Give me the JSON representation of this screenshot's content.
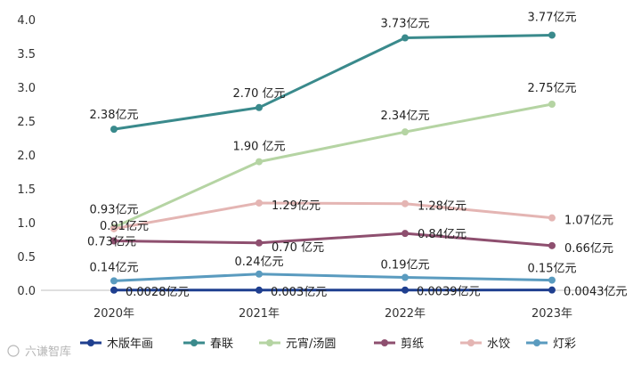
{
  "chart_data": {
    "type": "line",
    "x": [
      "2020年",
      "2021年",
      "2022年",
      "2023年"
    ],
    "ylim": [
      0,
      4.0
    ],
    "yticks": [
      "0.0",
      "0.5",
      "1.0",
      "1.5",
      "2.0",
      "2.5",
      "3.0",
      "3.5",
      "4.0"
    ],
    "grid": false,
    "legend_position": "bottom",
    "series": [
      {
        "name": "木版年画",
        "color": "#1f3f8f",
        "values": [
          0.0028,
          0.003,
          0.0039,
          0.0043
        ],
        "labels": [
          "0.0028亿元",
          "0.003亿元",
          "0.0039亿元",
          "0.0043亿元"
        ]
      },
      {
        "name": "春联",
        "color": "#3a8a8c",
        "values": [
          2.38,
          2.7,
          3.73,
          3.77
        ],
        "labels": [
          "2.38亿元",
          "2.70 亿元",
          "3.73亿元",
          "3.77亿元"
        ]
      },
      {
        "name": "元宵/汤圆",
        "color": "#b5d4a3",
        "values": [
          0.93,
          1.9,
          2.34,
          2.75
        ],
        "labels": [
          "0.93亿元",
          "1.90 亿元",
          "2.34亿元",
          "2.75亿元"
        ]
      },
      {
        "name": "剪纸",
        "color": "#8e4f6f",
        "values": [
          0.73,
          0.7,
          0.84,
          0.66
        ],
        "labels": [
          "0.73亿元",
          "0.70 亿元",
          "0.84亿元",
          "0.66亿元"
        ]
      },
      {
        "name": "水饺",
        "color": "#e4b5b3",
        "values": [
          0.91,
          1.29,
          1.28,
          1.07
        ],
        "labels": [
          "0.91亿元",
          "1.29亿元",
          "1.28亿元",
          "1.07亿元"
        ]
      },
      {
        "name": "灯彩",
        "color": "#5a9bbf",
        "values": [
          0.14,
          0.24,
          0.19,
          0.15
        ],
        "labels": [
          "0.14亿元",
          "0.24亿元",
          "0.19亿元",
          "0.15亿元"
        ]
      }
    ]
  },
  "watermark": "六谦智库"
}
